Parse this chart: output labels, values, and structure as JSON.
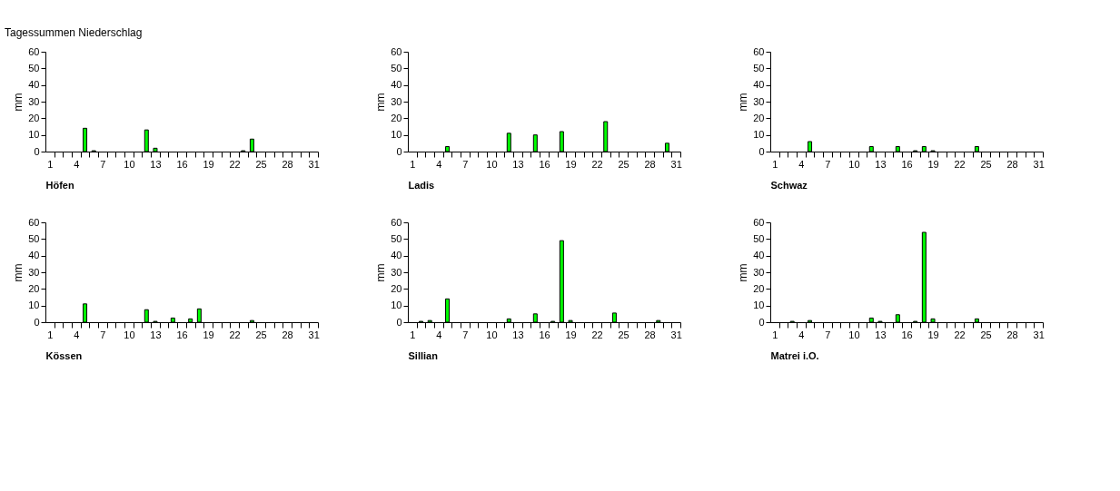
{
  "chart_data": [
    {
      "type": "bar",
      "title": "Tagessummen Niederschlag",
      "xlabel": "Höfen",
      "ylabel": "mm",
      "color": "#00ff00",
      "ylim": [
        0,
        60
      ],
      "yticks": [
        0,
        10,
        20,
        30,
        40,
        50,
        60
      ],
      "categories": [
        "1",
        null,
        null,
        "4",
        null,
        null,
        "7",
        null,
        null,
        "10",
        null,
        null,
        "13",
        null,
        null,
        "16",
        null,
        null,
        "19",
        null,
        null,
        "22",
        null,
        null,
        "25",
        null,
        null,
        "28",
        null,
        null,
        "31"
      ],
      "values": [
        null,
        null,
        null,
        null,
        14,
        0.5,
        null,
        null,
        null,
        null,
        null,
        13,
        2,
        null,
        null,
        null,
        null,
        null,
        null,
        null,
        null,
        null,
        0.5,
        7.5,
        null,
        null,
        null,
        null,
        null,
        null,
        null
      ]
    },
    {
      "type": "bar",
      "xlabel": "Ladis",
      "ylabel": "mm",
      "color": "#00ff00",
      "ylim": [
        0,
        60
      ],
      "yticks": [
        0,
        10,
        20,
        30,
        40,
        50,
        60
      ],
      "categories": [
        "1",
        null,
        null,
        "4",
        null,
        null,
        "7",
        null,
        null,
        "10",
        null,
        null,
        "13",
        null,
        null,
        "16",
        null,
        null,
        "19",
        null,
        null,
        "22",
        null,
        null,
        "25",
        null,
        null,
        "28",
        null,
        null,
        "31"
      ],
      "values": [
        null,
        null,
        null,
        null,
        3,
        null,
        null,
        null,
        null,
        null,
        null,
        11,
        null,
        null,
        10,
        null,
        null,
        12,
        null,
        null,
        null,
        null,
        18,
        null,
        null,
        null,
        null,
        null,
        null,
        5,
        null
      ]
    },
    {
      "type": "bar",
      "xlabel": "Schwaz",
      "ylabel": "mm",
      "color": "#00ff00",
      "ylim": [
        0,
        60
      ],
      "yticks": [
        0,
        10,
        20,
        30,
        40,
        50,
        60
      ],
      "categories": [
        "1",
        null,
        null,
        "4",
        null,
        null,
        "7",
        null,
        null,
        "10",
        null,
        null,
        "13",
        null,
        null,
        "16",
        null,
        null,
        "19",
        null,
        null,
        "22",
        null,
        null,
        "25",
        null,
        null,
        "28",
        null,
        null,
        "31"
      ],
      "values": [
        null,
        null,
        null,
        null,
        6,
        null,
        null,
        null,
        null,
        null,
        null,
        3,
        null,
        null,
        3,
        null,
        0.5,
        3,
        0.5,
        null,
        null,
        null,
        null,
        3,
        null,
        null,
        null,
        null,
        null,
        null,
        null
      ]
    },
    {
      "type": "bar",
      "xlabel": "Kössen",
      "ylabel": "mm",
      "color": "#00ff00",
      "ylim": [
        0,
        60
      ],
      "yticks": [
        0,
        10,
        20,
        30,
        40,
        50,
        60
      ],
      "categories": [
        "1",
        null,
        null,
        "4",
        null,
        null,
        "7",
        null,
        null,
        "10",
        null,
        null,
        "13",
        null,
        null,
        "16",
        null,
        null,
        "19",
        null,
        null,
        "22",
        null,
        null,
        "25",
        null,
        null,
        "28",
        null,
        null,
        "31"
      ],
      "values": [
        null,
        null,
        null,
        null,
        11,
        null,
        null,
        null,
        null,
        null,
        null,
        7.5,
        0.5,
        null,
        2.5,
        null,
        2,
        8,
        null,
        null,
        null,
        null,
        null,
        1,
        null,
        null,
        null,
        null,
        null,
        null,
        null
      ]
    },
    {
      "type": "bar",
      "xlabel": "Sillian",
      "ylabel": "mm",
      "color": "#00ff00",
      "ylim": [
        0,
        60
      ],
      "yticks": [
        0,
        10,
        20,
        30,
        40,
        50,
        60
      ],
      "categories": [
        "1",
        null,
        null,
        "4",
        null,
        null,
        "7",
        null,
        null,
        "10",
        null,
        null,
        "13",
        null,
        null,
        "16",
        null,
        null,
        "19",
        null,
        null,
        "22",
        null,
        null,
        "25",
        null,
        null,
        "28",
        null,
        null,
        "31"
      ],
      "values": [
        null,
        0.5,
        1,
        null,
        14,
        null,
        null,
        null,
        null,
        null,
        null,
        2,
        null,
        null,
        5,
        null,
        0.5,
        49,
        1,
        null,
        null,
        null,
        null,
        5.5,
        null,
        null,
        null,
        null,
        1,
        null,
        null
      ]
    },
    {
      "type": "bar",
      "xlabel": "Matrei i.O.",
      "ylabel": "mm",
      "color": "#00ff00",
      "ylim": [
        0,
        60
      ],
      "yticks": [
        0,
        10,
        20,
        30,
        40,
        50,
        60
      ],
      "categories": [
        "1",
        null,
        null,
        "4",
        null,
        null,
        "7",
        null,
        null,
        "10",
        null,
        null,
        "13",
        null,
        null,
        "16",
        null,
        null,
        "19",
        null,
        null,
        "22",
        null,
        null,
        "25",
        null,
        null,
        "28",
        null,
        null,
        "31"
      ],
      "values": [
        null,
        null,
        0.5,
        null,
        1,
        null,
        null,
        null,
        null,
        null,
        null,
        2.5,
        0.5,
        null,
        4.5,
        null,
        0.5,
        54,
        2,
        null,
        null,
        null,
        null,
        2,
        null,
        null,
        null,
        null,
        null,
        null,
        null
      ]
    }
  ]
}
